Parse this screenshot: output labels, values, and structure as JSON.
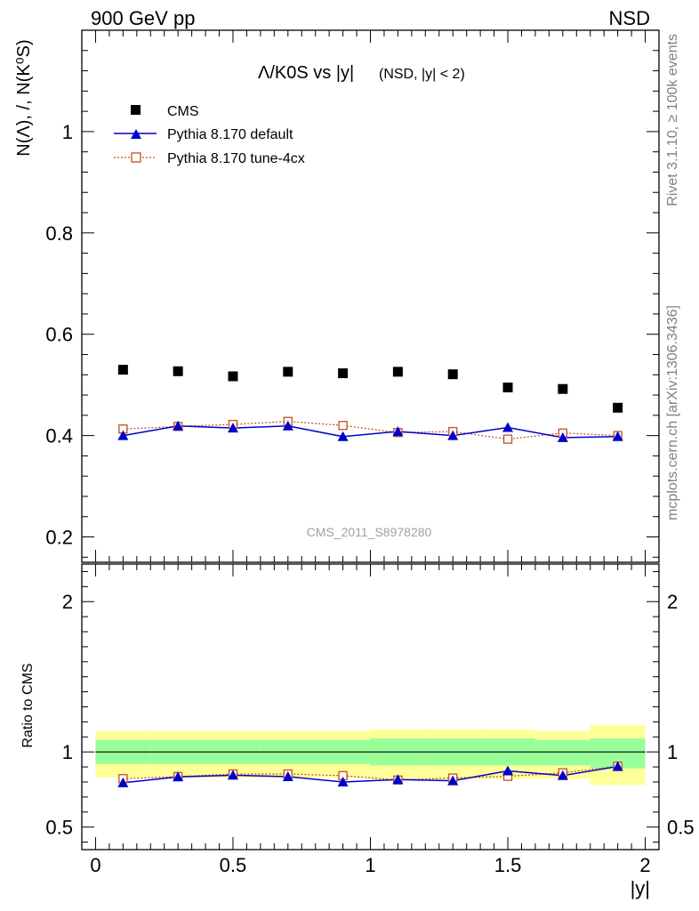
{
  "header": {
    "energy_label": "900 GeV pp",
    "process_label": "NSD"
  },
  "side_labels": {
    "rivet": "Rivet 3.1.10, ≥ 100k events",
    "mcplots": "mcplots.cern.ch [arXiv:1306.3436]"
  },
  "colors": {
    "cms": "#000000",
    "pythia_default": "#0000cc",
    "pythia_tune": "#c0501e",
    "band_outer": "#ffff99",
    "band_inner": "#99ff99"
  },
  "chart_data": [
    {
      "type": "scatter",
      "panel": "main",
      "title": "Λ/K0S vs |y|",
      "subtitle": "(NSD, |y| < 2)",
      "ylabel": "N(Λ), /, N(K⁰S)",
      "xlim": [
        -0.05,
        2.05
      ],
      "ylim": [
        0.15,
        1.2
      ],
      "yticks": [
        0.2,
        0.4,
        0.6,
        0.8,
        1
      ],
      "ytick_labels": [
        "0.2",
        "0.4",
        "0.6",
        "0.8",
        "1"
      ],
      "watermark": "CMS_2011_S8978280",
      "legend": {
        "placement": "top-left",
        "entries": [
          "CMS",
          "Pythia 8.170 default",
          "Pythia 8.170 tune-4cx"
        ]
      },
      "x": [
        0.1,
        0.3,
        0.5,
        0.7,
        0.9,
        1.1,
        1.3,
        1.5,
        1.7,
        1.9
      ],
      "series": [
        {
          "name": "CMS",
          "marker": "square",
          "values": [
            0.53,
            0.527,
            0.517,
            0.526,
            0.523,
            0.526,
            0.521,
            0.495,
            0.492,
            0.455
          ]
        },
        {
          "name": "Pythia 8.170 default",
          "marker": "triangle",
          "line": "solid",
          "values": [
            0.4,
            0.419,
            0.415,
            0.419,
            0.398,
            0.408,
            0.4,
            0.416,
            0.396,
            0.398
          ],
          "errors": [
            0.003,
            0.004,
            0.003,
            0.004,
            0.003,
            0.004,
            0.003,
            0.007,
            0.003,
            0.003
          ]
        },
        {
          "name": "Pythia 8.170 tune-4cx",
          "marker": "open-square",
          "line": "dotted",
          "values": [
            0.413,
            0.418,
            0.422,
            0.428,
            0.42,
            0.406,
            0.408,
            0.393,
            0.405,
            0.4
          ]
        }
      ]
    },
    {
      "type": "scatter",
      "panel": "ratio",
      "ylabel": "Ratio to CMS",
      "xlabel": "|y|",
      "xlim": [
        -0.05,
        2.05
      ],
      "ylim": [
        0.35,
        2.25
      ],
      "yticks": [
        0.5,
        1,
        2
      ],
      "ytick_labels": [
        "0.5",
        "1",
        "2"
      ],
      "xticks": [
        0,
        0.5,
        1,
        1.5,
        2
      ],
      "xtick_labels": [
        "0",
        "0.5",
        "1",
        "1.5",
        "2"
      ],
      "x": [
        0.1,
        0.3,
        0.5,
        0.7,
        0.9,
        1.1,
        1.3,
        1.5,
        1.7,
        1.9
      ],
      "bins": [
        [
          0.0,
          0.2
        ],
        [
          0.2,
          0.4
        ],
        [
          0.4,
          0.6
        ],
        [
          0.6,
          0.8
        ],
        [
          0.8,
          1.0
        ],
        [
          1.0,
          1.2
        ],
        [
          1.2,
          1.4
        ],
        [
          1.4,
          1.6
        ],
        [
          1.6,
          1.8
        ],
        [
          1.8,
          2.0
        ]
      ],
      "band_outer": [
        [
          0.83,
          1.14
        ],
        [
          0.83,
          1.14
        ],
        [
          0.83,
          1.14
        ],
        [
          0.83,
          1.14
        ],
        [
          0.83,
          1.14
        ],
        [
          0.82,
          1.15
        ],
        [
          0.82,
          1.15
        ],
        [
          0.82,
          1.15
        ],
        [
          0.82,
          1.14
        ],
        [
          0.78,
          1.18
        ]
      ],
      "band_inner": [
        [
          0.92,
          1.08
        ],
        [
          0.92,
          1.08
        ],
        [
          0.92,
          1.08
        ],
        [
          0.92,
          1.08
        ],
        [
          0.92,
          1.08
        ],
        [
          0.91,
          1.09
        ],
        [
          0.91,
          1.09
        ],
        [
          0.91,
          1.09
        ],
        [
          0.91,
          1.08
        ],
        [
          0.89,
          1.09
        ]
      ],
      "series": [
        {
          "name": "Pythia 8.170 default",
          "values": [
            0.795,
            0.834,
            0.845,
            0.835,
            0.8,
            0.816,
            0.808,
            0.874,
            0.843,
            0.903
          ]
        },
        {
          "name": "Pythia 8.170 tune-4cx",
          "values": [
            0.822,
            0.836,
            0.853,
            0.853,
            0.842,
            0.813,
            0.826,
            0.838,
            0.861,
            0.905
          ]
        }
      ]
    }
  ]
}
